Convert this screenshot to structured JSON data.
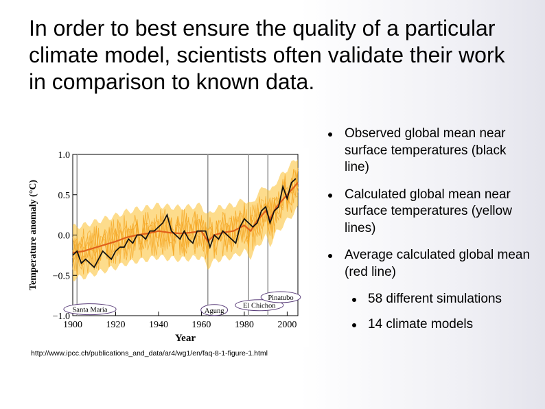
{
  "slide": {
    "title": "In order to best ensure the quality of a particular climate model, scientists often validate their work in comparison to known data.",
    "source_url": "http://www.ipcc.ch/publications_and_data/ar4/wg1/en/faq-8-1-figure-1.html",
    "bullets": [
      {
        "text": "Observed global mean near surface temperatures (black line)"
      },
      {
        "text": "Calculated global mean near surface temperatures (yellow lines)"
      },
      {
        "text": "Average calculated global mean (red line)"
      }
    ],
    "sub_bullets": [
      {
        "text": "58 different simulations"
      },
      {
        "text": "14 climate models"
      }
    ]
  },
  "chart_data": {
    "type": "line",
    "title": "",
    "xlabel": "Year",
    "ylabel": "Temperature anomaly (°C)",
    "xlim": [
      1900,
      2005
    ],
    "ylim": [
      -1.0,
      1.0
    ],
    "x_ticks": [
      1900,
      1920,
      1940,
      1960,
      1980,
      2000
    ],
    "y_ticks": [
      -1.0,
      -0.5,
      0.0,
      0.5,
      1.0
    ],
    "y_tick_labels": [
      "−1.0",
      "−0.5",
      "0.0",
      "0.5",
      "1.0"
    ],
    "colors": {
      "observed": "#111111",
      "ensemble_mean": "#e0601a",
      "ensemble_band": "#fbc02d",
      "volcano_line": "#9a9a9a"
    },
    "volcanoes": [
      {
        "name": "Santa Maria",
        "year": 1902
      },
      {
        "name": "Agung",
        "year": 1963
      },
      {
        "name": "El Chichon",
        "year": 1982
      },
      {
        "name": "Pinatubo",
        "year": 1991
      }
    ],
    "series": [
      {
        "name": "observed",
        "x": [
          1900,
          1902,
          1904,
          1906,
          1908,
          1910,
          1912,
          1914,
          1916,
          1918,
          1920,
          1922,
          1924,
          1926,
          1928,
          1930,
          1932,
          1934,
          1936,
          1938,
          1940,
          1942,
          1944,
          1946,
          1948,
          1950,
          1952,
          1954,
          1956,
          1958,
          1960,
          1962,
          1964,
          1966,
          1968,
          1970,
          1972,
          1974,
          1976,
          1978,
          1980,
          1982,
          1984,
          1986,
          1988,
          1990,
          1992,
          1994,
          1996,
          1998,
          2000,
          2002,
          2004
        ],
        "y": [
          -0.25,
          -0.2,
          -0.35,
          -0.3,
          -0.35,
          -0.4,
          -0.3,
          -0.2,
          -0.25,
          -0.3,
          -0.2,
          -0.15,
          -0.15,
          -0.05,
          -0.1,
          0.0,
          0.0,
          -0.05,
          0.05,
          0.05,
          0.1,
          0.15,
          0.25,
          0.05,
          0.0,
          -0.05,
          0.05,
          -0.05,
          -0.1,
          0.05,
          0.05,
          0.05,
          -0.15,
          0.0,
          -0.05,
          0.05,
          0.0,
          -0.05,
          -0.1,
          0.1,
          0.2,
          0.15,
          0.1,
          0.15,
          0.3,
          0.35,
          0.15,
          0.3,
          0.35,
          0.6,
          0.45,
          0.65,
          0.7
        ]
      },
      {
        "name": "ensemble mean",
        "x": [
          1900,
          1905,
          1910,
          1915,
          1920,
          1925,
          1930,
          1935,
          1940,
          1945,
          1950,
          1955,
          1960,
          1963,
          1966,
          1970,
          1975,
          1980,
          1983,
          1986,
          1990,
          1992,
          1995,
          2000,
          2005
        ],
        "y": [
          -0.22,
          -0.2,
          -0.16,
          -0.12,
          -0.08,
          -0.03,
          0.0,
          0.02,
          0.05,
          0.03,
          0.02,
          0.03,
          0.05,
          -0.08,
          0.0,
          0.03,
          0.05,
          0.12,
          0.05,
          0.18,
          0.3,
          0.2,
          0.35,
          0.5,
          0.65
        ]
      }
    ]
  }
}
